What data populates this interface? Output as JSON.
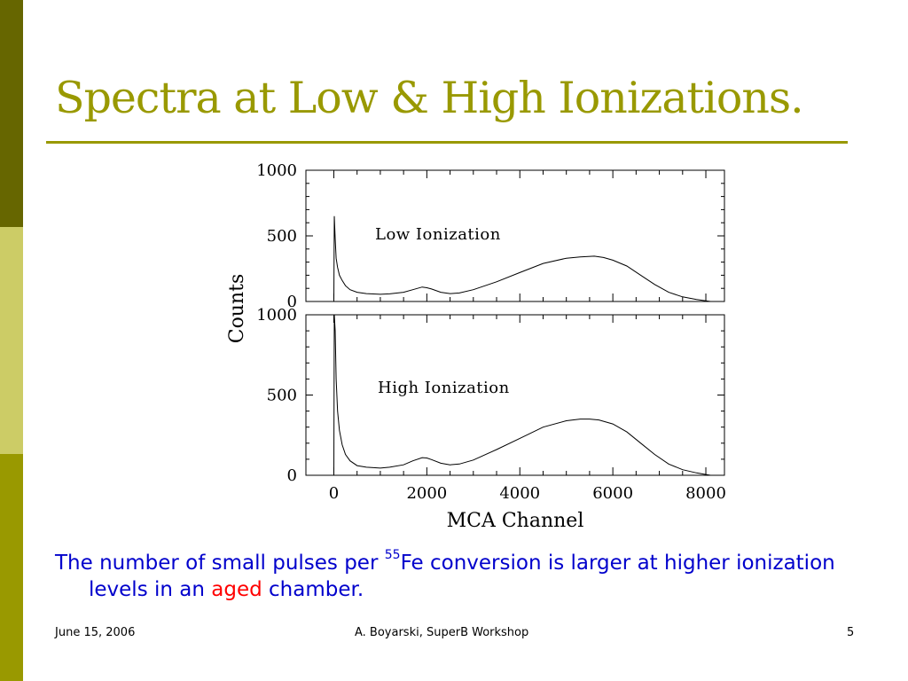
{
  "slide": {
    "title": "Spectra at Low & High Ionizations.",
    "caption": {
      "pre": "The number of small pulses per ",
      "superscript": "55",
      "mid": "Fe conversion is larger at higher ionization levels in an ",
      "highlight": "aged",
      "post": " chamber."
    },
    "footer": {
      "date": "June 15, 2006",
      "author": "A. Boyarski,  SuperB Workshop",
      "page": "5"
    },
    "colors": {
      "title": "#999900",
      "caption": "#0000cc",
      "highlight": "#ff0000",
      "bar_dark": "#666600",
      "bar_light": "#cccc66",
      "bar_olive": "#999900"
    }
  },
  "chart_data": {
    "type": "line",
    "xlabel": "MCA Channel",
    "ylabel": "Counts",
    "xlim": [
      -600,
      8400
    ],
    "x_ticks": [
      0,
      2000,
      4000,
      6000,
      8000
    ],
    "panels": [
      {
        "label": "Low Ionization",
        "ylim": [
          0,
          1000
        ],
        "y_ticks": [
          0,
          500,
          1000
        ],
        "x": [
          0,
          10,
          30,
          50,
          80,
          120,
          180,
          250,
          350,
          500,
          700,
          1000,
          1200,
          1500,
          1700,
          1900,
          2000,
          2100,
          2300,
          2500,
          2700,
          3000,
          3500,
          4000,
          4500,
          5000,
          5300,
          5600,
          5800,
          6000,
          6300,
          6600,
          6900,
          7200,
          7500,
          7800,
          8000,
          8100
        ],
        "y": [
          0,
          650,
          480,
          330,
          260,
          200,
          160,
          120,
          90,
          70,
          60,
          55,
          58,
          70,
          90,
          110,
          105,
          95,
          70,
          60,
          65,
          90,
          150,
          220,
          290,
          330,
          340,
          345,
          335,
          315,
          270,
          200,
          130,
          70,
          35,
          15,
          5,
          0
        ]
      },
      {
        "label": "High Ionization",
        "ylim": [
          0,
          1000
        ],
        "y_ticks": [
          0,
          500,
          1000
        ],
        "x": [
          0,
          10,
          30,
          50,
          80,
          120,
          180,
          250,
          350,
          500,
          700,
          1000,
          1200,
          1500,
          1700,
          1900,
          2000,
          2100,
          2300,
          2500,
          2700,
          3000,
          3500,
          4000,
          4500,
          5000,
          5300,
          5500,
          5700,
          6000,
          6300,
          6600,
          6900,
          7200,
          7500,
          7800,
          8000,
          8100
        ],
        "y": [
          0,
          1000,
          900,
          600,
          400,
          280,
          190,
          130,
          90,
          60,
          50,
          45,
          50,
          65,
          90,
          110,
          108,
          98,
          75,
          65,
          70,
          95,
          160,
          230,
          300,
          340,
          350,
          350,
          345,
          320,
          270,
          200,
          130,
          70,
          35,
          15,
          5,
          0
        ]
      }
    ]
  }
}
